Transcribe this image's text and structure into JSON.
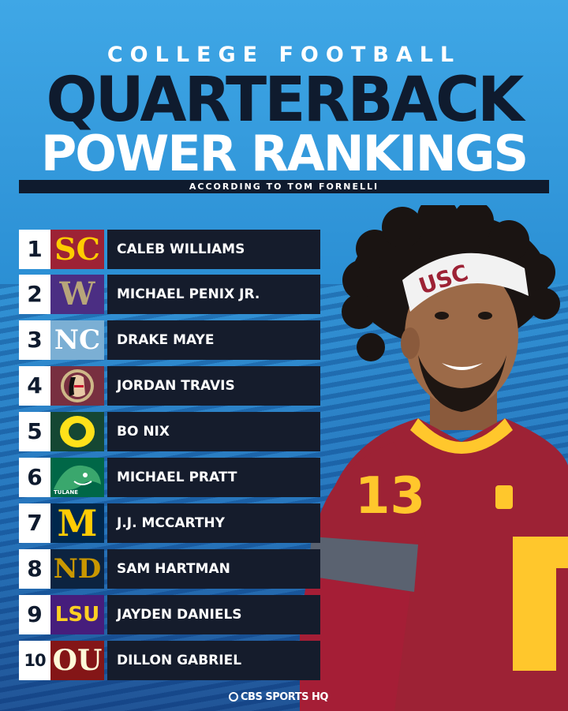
{
  "header": {
    "kicker": "COLLEGE FOOTBALL",
    "title_line1": "QUARTERBACK",
    "title_line2": "POWER RANKINGS",
    "byline": "ACCORDING TO TOM FORNELLI"
  },
  "rankings": [
    {
      "rank": "1",
      "name": "CALEB WILLIAMS",
      "logo": "usc-logo",
      "logo_text": "SC"
    },
    {
      "rank": "2",
      "name": "MICHAEL PENIX JR.",
      "logo": "washington-logo",
      "logo_text": "W"
    },
    {
      "rank": "3",
      "name": "DRAKE MAYE",
      "logo": "north-carolina-logo",
      "logo_text": "NC"
    },
    {
      "rank": "4",
      "name": "JORDAN TRAVIS",
      "logo": "florida-state-logo",
      "logo_text": ""
    },
    {
      "rank": "5",
      "name": "BO NIX",
      "logo": "oregon-logo",
      "logo_text": "O"
    },
    {
      "rank": "6",
      "name": "MICHAEL PRATT",
      "logo": "tulane-logo",
      "logo_text": "TULANE"
    },
    {
      "rank": "7",
      "name": "J.J. MCCARTHY",
      "logo": "michigan-logo",
      "logo_text": "M"
    },
    {
      "rank": "8",
      "name": "SAM HARTMAN",
      "logo": "notre-dame-logo",
      "logo_text": "ND"
    },
    {
      "rank": "9",
      "name": "JAYDEN DANIELS",
      "logo": "lsu-logo",
      "logo_text": "LSU"
    },
    {
      "rank": "10",
      "name": "DILLON GABRIEL",
      "logo": "oklahoma-logo",
      "logo_text": "OU"
    }
  ],
  "player": {
    "headband_text": "USC",
    "jersey_number": "13",
    "jersey_color": "#9d2235",
    "number_color": "#ffc72c"
  },
  "footer": {
    "watermark": "CBS SPORTS HQ"
  }
}
